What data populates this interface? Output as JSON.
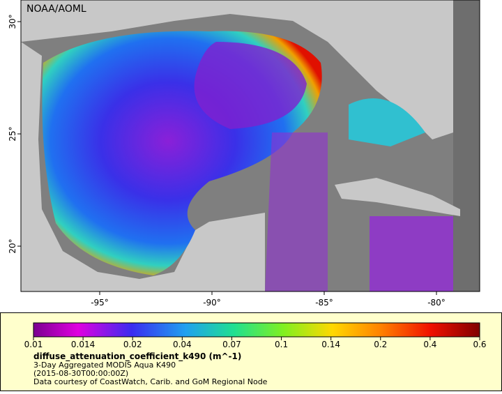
{
  "map": {
    "watermark": "NOAA/AOML",
    "lon_ticks": [
      "-95°",
      "-90°",
      "-85°",
      "-80°"
    ],
    "lat_ticks": [
      "30°",
      "25°",
      "20°"
    ],
    "colorbar": {
      "ticks": [
        "0.01",
        "0.014",
        "0.02",
        "0.04",
        "0.07",
        "0.1",
        "0.14",
        "0.2",
        "0.4",
        "0.6"
      ],
      "title": "diffuse_attenuation_coefficient_k490 (m^-1)",
      "lines": [
        "3-Day Aggregated MODIS Aqua K490",
        "(2015-08-30T00:00:00Z)",
        "Data courtesy of CoastWatch, Carib. and GoM Regional Node"
      ]
    }
  }
}
